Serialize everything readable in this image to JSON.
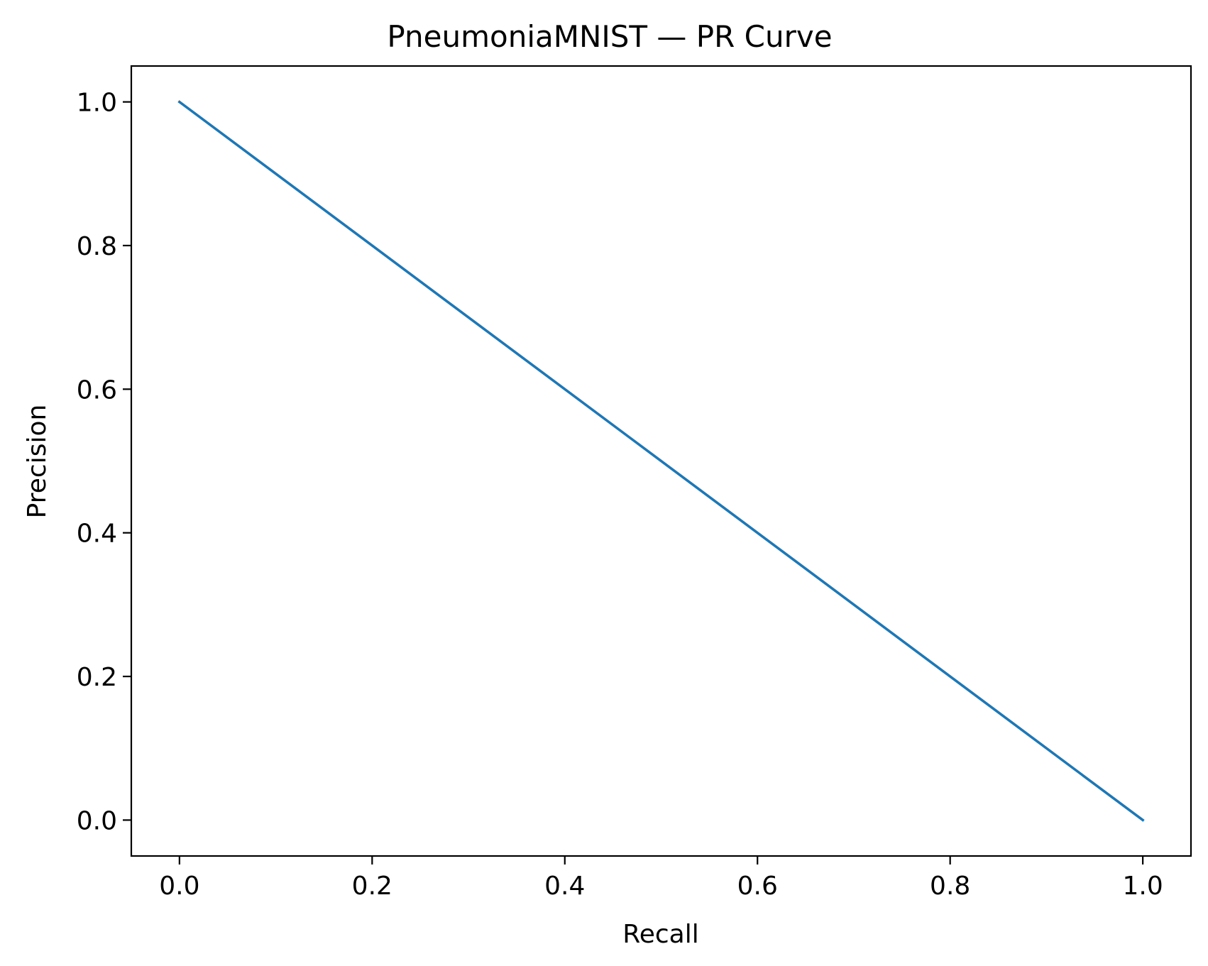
{
  "chart_data": {
    "type": "line",
    "title": "PneumoniaMNIST — PR Curve",
    "xlabel": "Recall",
    "ylabel": "Precision",
    "xlim": [
      -0.05,
      1.05
    ],
    "ylim": [
      -0.05,
      1.05
    ],
    "xticks": [
      0.0,
      0.2,
      0.4,
      0.6,
      0.8,
      1.0
    ],
    "xtick_labels": [
      "0.0",
      "0.2",
      "0.4",
      "0.6",
      "0.8",
      "1.0"
    ],
    "yticks": [
      0.0,
      0.2,
      0.4,
      0.6,
      0.8,
      1.0
    ],
    "ytick_labels": [
      "0.0",
      "0.2",
      "0.4",
      "0.6",
      "0.8",
      "1.0"
    ],
    "grid": false,
    "legend": "none",
    "series": [
      {
        "color": "#1f77b4",
        "x": [
          0.0,
          1.0
        ],
        "y": [
          1.0,
          0.0
        ]
      }
    ]
  }
}
